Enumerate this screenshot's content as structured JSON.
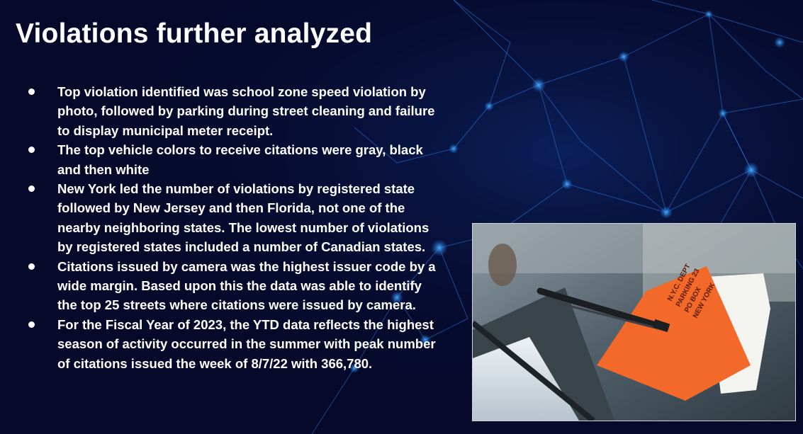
{
  "title": "Violations further analyzed",
  "bullets": [
    "Top violation identified was school zone speed violation by photo, followed by parking during street cleaning and failure to display municipal meter receipt.",
    "The top vehicle colors to receive citations were gray, black and then white",
    "New York led the number of violations by registered state followed by New Jersey and then Florida, not one of the nearby neighboring states. The lowest number of violations by registered states included a number of Canadian states.",
    "Citations issued by camera was the highest issuer code by a wide margin. Based upon this the data was able to identify the top 25 streets where citations were issued by camera.",
    "For the Fiscal Year of 2023, the YTD data reflects the highest season of activity occurred in the summer with peak number of citations issued the week of 8/7/22 with 366,780."
  ],
  "ticket_text": [
    "N.Y.C. DEPT",
    "PARKING 23",
    "PO BOX",
    "NEW YORK"
  ],
  "colors": {
    "background": "#06092a",
    "network": "#1f6fe0",
    "ticket": "#f2692a"
  }
}
